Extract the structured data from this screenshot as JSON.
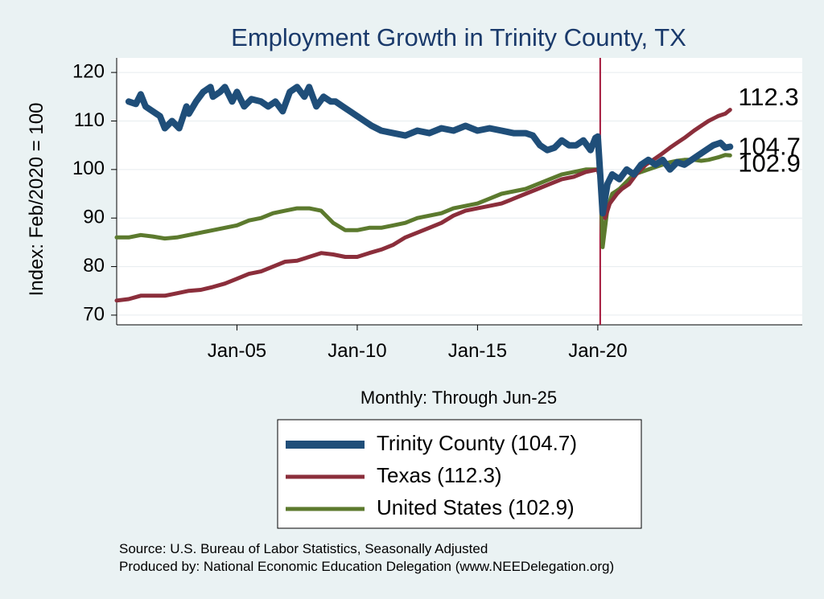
{
  "chart_data": {
    "type": "line",
    "title": "Employment Growth in Trinity  County, TX",
    "ylabel": "Index: Feb/2020 = 100",
    "xlabel": "Monthly: Through Jun-25",
    "ylim": [
      68,
      123
    ],
    "xlim": [
      2000.0,
      2028.5
    ],
    "y_ticks": [
      70,
      80,
      90,
      100,
      110,
      120
    ],
    "x_ticks": [
      {
        "label": "Jan-05",
        "value": 2005.0
      },
      {
        "label": "Jan-10",
        "value": 2010.0
      },
      {
        "label": "Jan-15",
        "value": 2015.0
      },
      {
        "label": "Jan-20",
        "value": 2020.0
      }
    ],
    "reference_line": {
      "x": 2020.1,
      "color": "#a4163a"
    },
    "series": [
      {
        "name": "Trinity  County",
        "legend": "Trinity  County (104.7)",
        "end_label": "104.7",
        "color": "#1f4e79",
        "x": [
          2000.5,
          2000.8,
          2001.0,
          2001.2,
          2001.5,
          2001.8,
          2002.0,
          2002.3,
          2002.6,
          2002.9,
          2003.0,
          2003.3,
          2003.6,
          2003.9,
          2004.0,
          2004.3,
          2004.5,
          2004.8,
          2005.0,
          2005.3,
          2005.6,
          2006.0,
          2006.3,
          2006.6,
          2006.9,
          2007.2,
          2007.5,
          2007.8,
          2008.0,
          2008.3,
          2008.6,
          2008.9,
          2009.1,
          2009.4,
          2009.7,
          2010.0,
          2010.3,
          2010.6,
          2011.0,
          2011.5,
          2012.0,
          2012.5,
          2013.0,
          2013.5,
          2014.0,
          2014.5,
          2015.0,
          2015.5,
          2016.0,
          2016.5,
          2017.0,
          2017.3,
          2017.6,
          2017.9,
          2018.2,
          2018.5,
          2018.8,
          2019.1,
          2019.4,
          2019.7,
          2019.9,
          2020.0,
          2020.1,
          2020.2,
          2020.4,
          2020.6,
          2020.9,
          2021.2,
          2021.5,
          2021.8,
          2022.1,
          2022.4,
          2022.7,
          2023.0,
          2023.3,
          2023.6,
          2023.9,
          2024.2,
          2024.5,
          2024.8,
          2025.1,
          2025.3,
          2025.5
        ],
        "y": [
          114,
          113.5,
          115.5,
          113,
          112,
          111,
          108.5,
          110,
          108.5,
          113,
          111.5,
          114,
          116,
          117,
          115,
          116,
          117,
          114,
          116,
          113,
          114.5,
          114,
          113,
          114,
          112,
          116,
          117,
          115,
          117,
          113,
          115,
          114,
          114,
          113,
          112,
          111,
          110,
          109,
          108,
          107.5,
          107,
          108,
          107.5,
          108.5,
          108,
          109,
          108,
          108.5,
          108,
          107.5,
          107.5,
          107,
          105,
          104,
          104.5,
          106,
          105,
          105,
          106,
          104,
          106.5,
          106.8,
          99,
          91,
          97,
          99,
          98,
          100,
          99,
          101,
          102,
          101,
          102,
          100,
          101.5,
          101,
          102,
          103,
          104,
          105,
          105.5,
          104.5,
          104.7
        ]
      },
      {
        "name": "Texas",
        "legend": "Texas (112.3)",
        "end_label": "112.3",
        "color": "#8b2e3b",
        "x": [
          2000.0,
          2000.5,
          2001.0,
          2001.5,
          2002.0,
          2002.5,
          2003.0,
          2003.5,
          2004.0,
          2004.5,
          2005.0,
          2005.5,
          2006.0,
          2006.5,
          2007.0,
          2007.5,
          2008.0,
          2008.5,
          2009.0,
          2009.5,
          2010.0,
          2010.5,
          2011.0,
          2011.5,
          2012.0,
          2012.5,
          2013.0,
          2013.5,
          2014.0,
          2014.5,
          2015.0,
          2015.5,
          2016.0,
          2016.5,
          2017.0,
          2017.5,
          2018.0,
          2018.5,
          2019.0,
          2019.5,
          2020.0,
          2020.1,
          2020.3,
          2020.5,
          2020.8,
          2021.0,
          2021.3,
          2021.6,
          2022.0,
          2022.3,
          2022.6,
          2023.0,
          2023.3,
          2023.6,
          2024.0,
          2024.3,
          2024.6,
          2025.0,
          2025.3,
          2025.5
        ],
        "y": [
          73,
          73.3,
          74,
          74,
          74,
          74.5,
          75,
          75.2,
          75.8,
          76.5,
          77.5,
          78.5,
          79,
          80,
          81,
          81.2,
          82,
          82.8,
          82.5,
          82,
          82,
          82.8,
          83.5,
          84.5,
          86,
          87,
          88,
          89,
          90.5,
          91.5,
          92,
          92.5,
          93,
          94,
          95,
          96,
          97,
          98,
          98.5,
          99.5,
          100,
          98,
          90,
          93,
          95,
          96,
          97,
          99,
          101,
          102,
          103,
          104.5,
          105.5,
          106.5,
          108,
          109,
          110,
          111,
          111.5,
          112.3
        ]
      },
      {
        "name": "United States",
        "legend": "United States (102.9)",
        "end_label": "102.9",
        "color": "#5c7a2e",
        "x": [
          2000.0,
          2000.5,
          2001.0,
          2001.5,
          2002.0,
          2002.5,
          2003.0,
          2003.5,
          2004.0,
          2004.5,
          2005.0,
          2005.5,
          2006.0,
          2006.5,
          2007.0,
          2007.5,
          2008.0,
          2008.5,
          2009.0,
          2009.5,
          2010.0,
          2010.5,
          2011.0,
          2011.5,
          2012.0,
          2012.5,
          2013.0,
          2013.5,
          2014.0,
          2014.5,
          2015.0,
          2015.5,
          2016.0,
          2016.5,
          2017.0,
          2017.5,
          2018.0,
          2018.5,
          2019.0,
          2019.5,
          2020.0,
          2020.1,
          2020.2,
          2020.4,
          2020.6,
          2020.9,
          2021.2,
          2021.5,
          2021.8,
          2022.1,
          2022.4,
          2022.7,
          2023.0,
          2023.3,
          2023.6,
          2024.0,
          2024.3,
          2024.6,
          2025.0,
          2025.3,
          2025.5
        ],
        "y": [
          86,
          86,
          86.5,
          86.2,
          85.8,
          86,
          86.5,
          87,
          87.5,
          88,
          88.5,
          89.5,
          90,
          91,
          91.5,
          92,
          92,
          91.5,
          89,
          87.5,
          87.5,
          88,
          88,
          88.5,
          89,
          90,
          90.5,
          91,
          92,
          92.5,
          93,
          94,
          95,
          95.5,
          96,
          97,
          98,
          99,
          99.5,
          100,
          100,
          99,
          84,
          92,
          95,
          96,
          97.5,
          99,
          99.5,
          100,
          100.5,
          101,
          101.5,
          101.8,
          102,
          102,
          101.8,
          102,
          102.5,
          103,
          102.9
        ]
      }
    ]
  },
  "footer": {
    "source": "Source: U.S. Bureau of Labor Statistics, Seasonally Adjusted",
    "produced_by": "Produced by: National Economic Education Delegation (www.NEEDelegation.org)"
  }
}
